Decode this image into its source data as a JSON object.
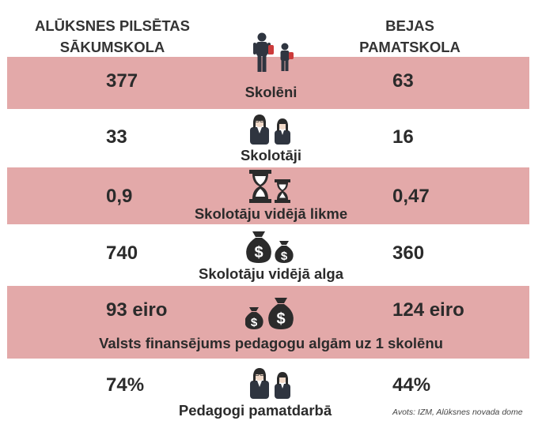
{
  "header": {
    "left_line1": "ALŪKSNES PILSĒTAS",
    "left_line2": "SĀKUMSKOLA",
    "right_line1": "BEJAS",
    "right_line2": "PAMATSKOLA",
    "icon": "students-icon"
  },
  "rows": [
    {
      "label": "Skolēni",
      "left": "377",
      "right": "63",
      "icon": "students-icon",
      "highlighted": true
    },
    {
      "label": "Skolotāji",
      "left": "33",
      "right": "16",
      "icon": "teachers-icon",
      "highlighted": false
    },
    {
      "label": "Skolotāju vidējā likme",
      "left": "0,9",
      "right": "0,47",
      "icon": "hourglass-icon",
      "highlighted": true
    },
    {
      "label": "Skolotāju vidējā alga",
      "left": "740",
      "right": "360",
      "icon": "money-bag-icon",
      "highlighted": false
    },
    {
      "label": "Valsts finansējums pedagogu algām uz 1 skolēnu",
      "left": "93 eiro",
      "right": "124 eiro",
      "icon": "money-bag-icon",
      "highlighted": true
    },
    {
      "label": "Pedagogi pamatdarbā",
      "left": "74%",
      "right": "44%",
      "icon": "teachers-icon",
      "highlighted": false
    }
  ],
  "source": "Avots: IZM, Alūksnes novada dome",
  "colors": {
    "band": "#e3a9a9",
    "text": "#2b2b2b",
    "suit": "#2f3540",
    "bag": "#cc3b3b"
  }
}
